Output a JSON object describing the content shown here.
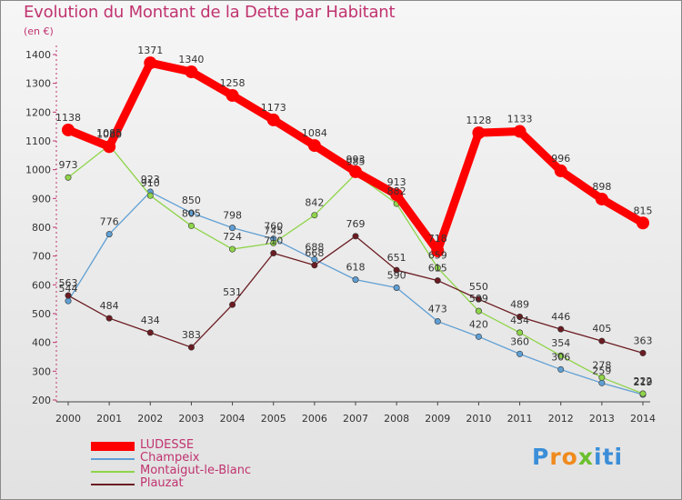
{
  "header": {
    "title": "Evolution du Montant de la Dette par Habitant",
    "unit": "(en €)"
  },
  "brand": {
    "text": "Proxiti",
    "letters": [
      "P",
      "r",
      "o",
      "x",
      "i",
      "t",
      "i"
    ],
    "colors": [
      "#3b8ed8",
      "#f08a1d",
      "#f08a1d",
      "#6cbf2e",
      "#3b8ed8",
      "#3b8ed8",
      "#3b8ed8"
    ]
  },
  "chart_data": {
    "type": "line",
    "title": "Evolution du Montant de la Dette par Habitant",
    "ylabel": "(en €)",
    "xlabel": "",
    "ylim": [
      200,
      1400
    ],
    "yticks": [
      200,
      300,
      400,
      500,
      600,
      700,
      800,
      900,
      1000,
      1100,
      1200,
      1300,
      1400
    ],
    "x": [
      "2000",
      "2001",
      "2002",
      "2003",
      "2004",
      "2005",
      "2006",
      "2007",
      "2008",
      "2009",
      "2010",
      "2011",
      "2012",
      "2013",
      "2014"
    ],
    "grid": false,
    "legend": "bottom-left",
    "series": [
      {
        "name": "LUDESSE",
        "color": "#ff0000",
        "emphasis": true,
        "values": [
          1138,
          1080,
          1371,
          1340,
          1258,
          1173,
          1084,
          993,
          913,
          718,
          1128,
          1133,
          996,
          898,
          815
        ],
        "labels": [
          "1138",
          "1080",
          "1371",
          "1340",
          "1258",
          "1173",
          "1084",
          "993",
          "913",
          "718",
          "1128",
          "1133",
          "996",
          "898",
          "815"
        ]
      },
      {
        "name": "Champeix",
        "color": "#5f9fd4",
        "values": [
          544,
          776,
          923,
          850,
          798,
          760,
          688,
          618,
          590,
          473,
          420,
          360,
          306,
          259,
          219
        ],
        "labels": [
          "544",
          "776",
          "923",
          "850",
          "798",
          "760",
          "688",
          "618",
          "590",
          "473",
          "420",
          "360",
          "306",
          "259",
          "219"
        ]
      },
      {
        "name": "Montaigut-le-Blanc",
        "color": "#8fd44a",
        "values": [
          973,
          1085,
          910,
          805,
          724,
          745,
          842,
          985,
          882,
          659,
          509,
          434,
          354,
          278,
          222
        ],
        "labels": [
          "973",
          "1085",
          "910",
          "805",
          "724",
          "745",
          "842",
          "985",
          "882",
          "659",
          "509",
          "434",
          "354",
          "278",
          "222"
        ]
      },
      {
        "name": "Plauzat",
        "color": "#6b1c22",
        "values": [
          563,
          484,
          434,
          383,
          531,
          710,
          668,
          769,
          651,
          615,
          550,
          489,
          446,
          405,
          363
        ],
        "labels": [
          "563",
          "484",
          "434",
          "383",
          "531",
          "710",
          "668",
          "769",
          "651",
          "615",
          "550",
          "489",
          "446",
          "405",
          "363"
        ]
      }
    ]
  }
}
